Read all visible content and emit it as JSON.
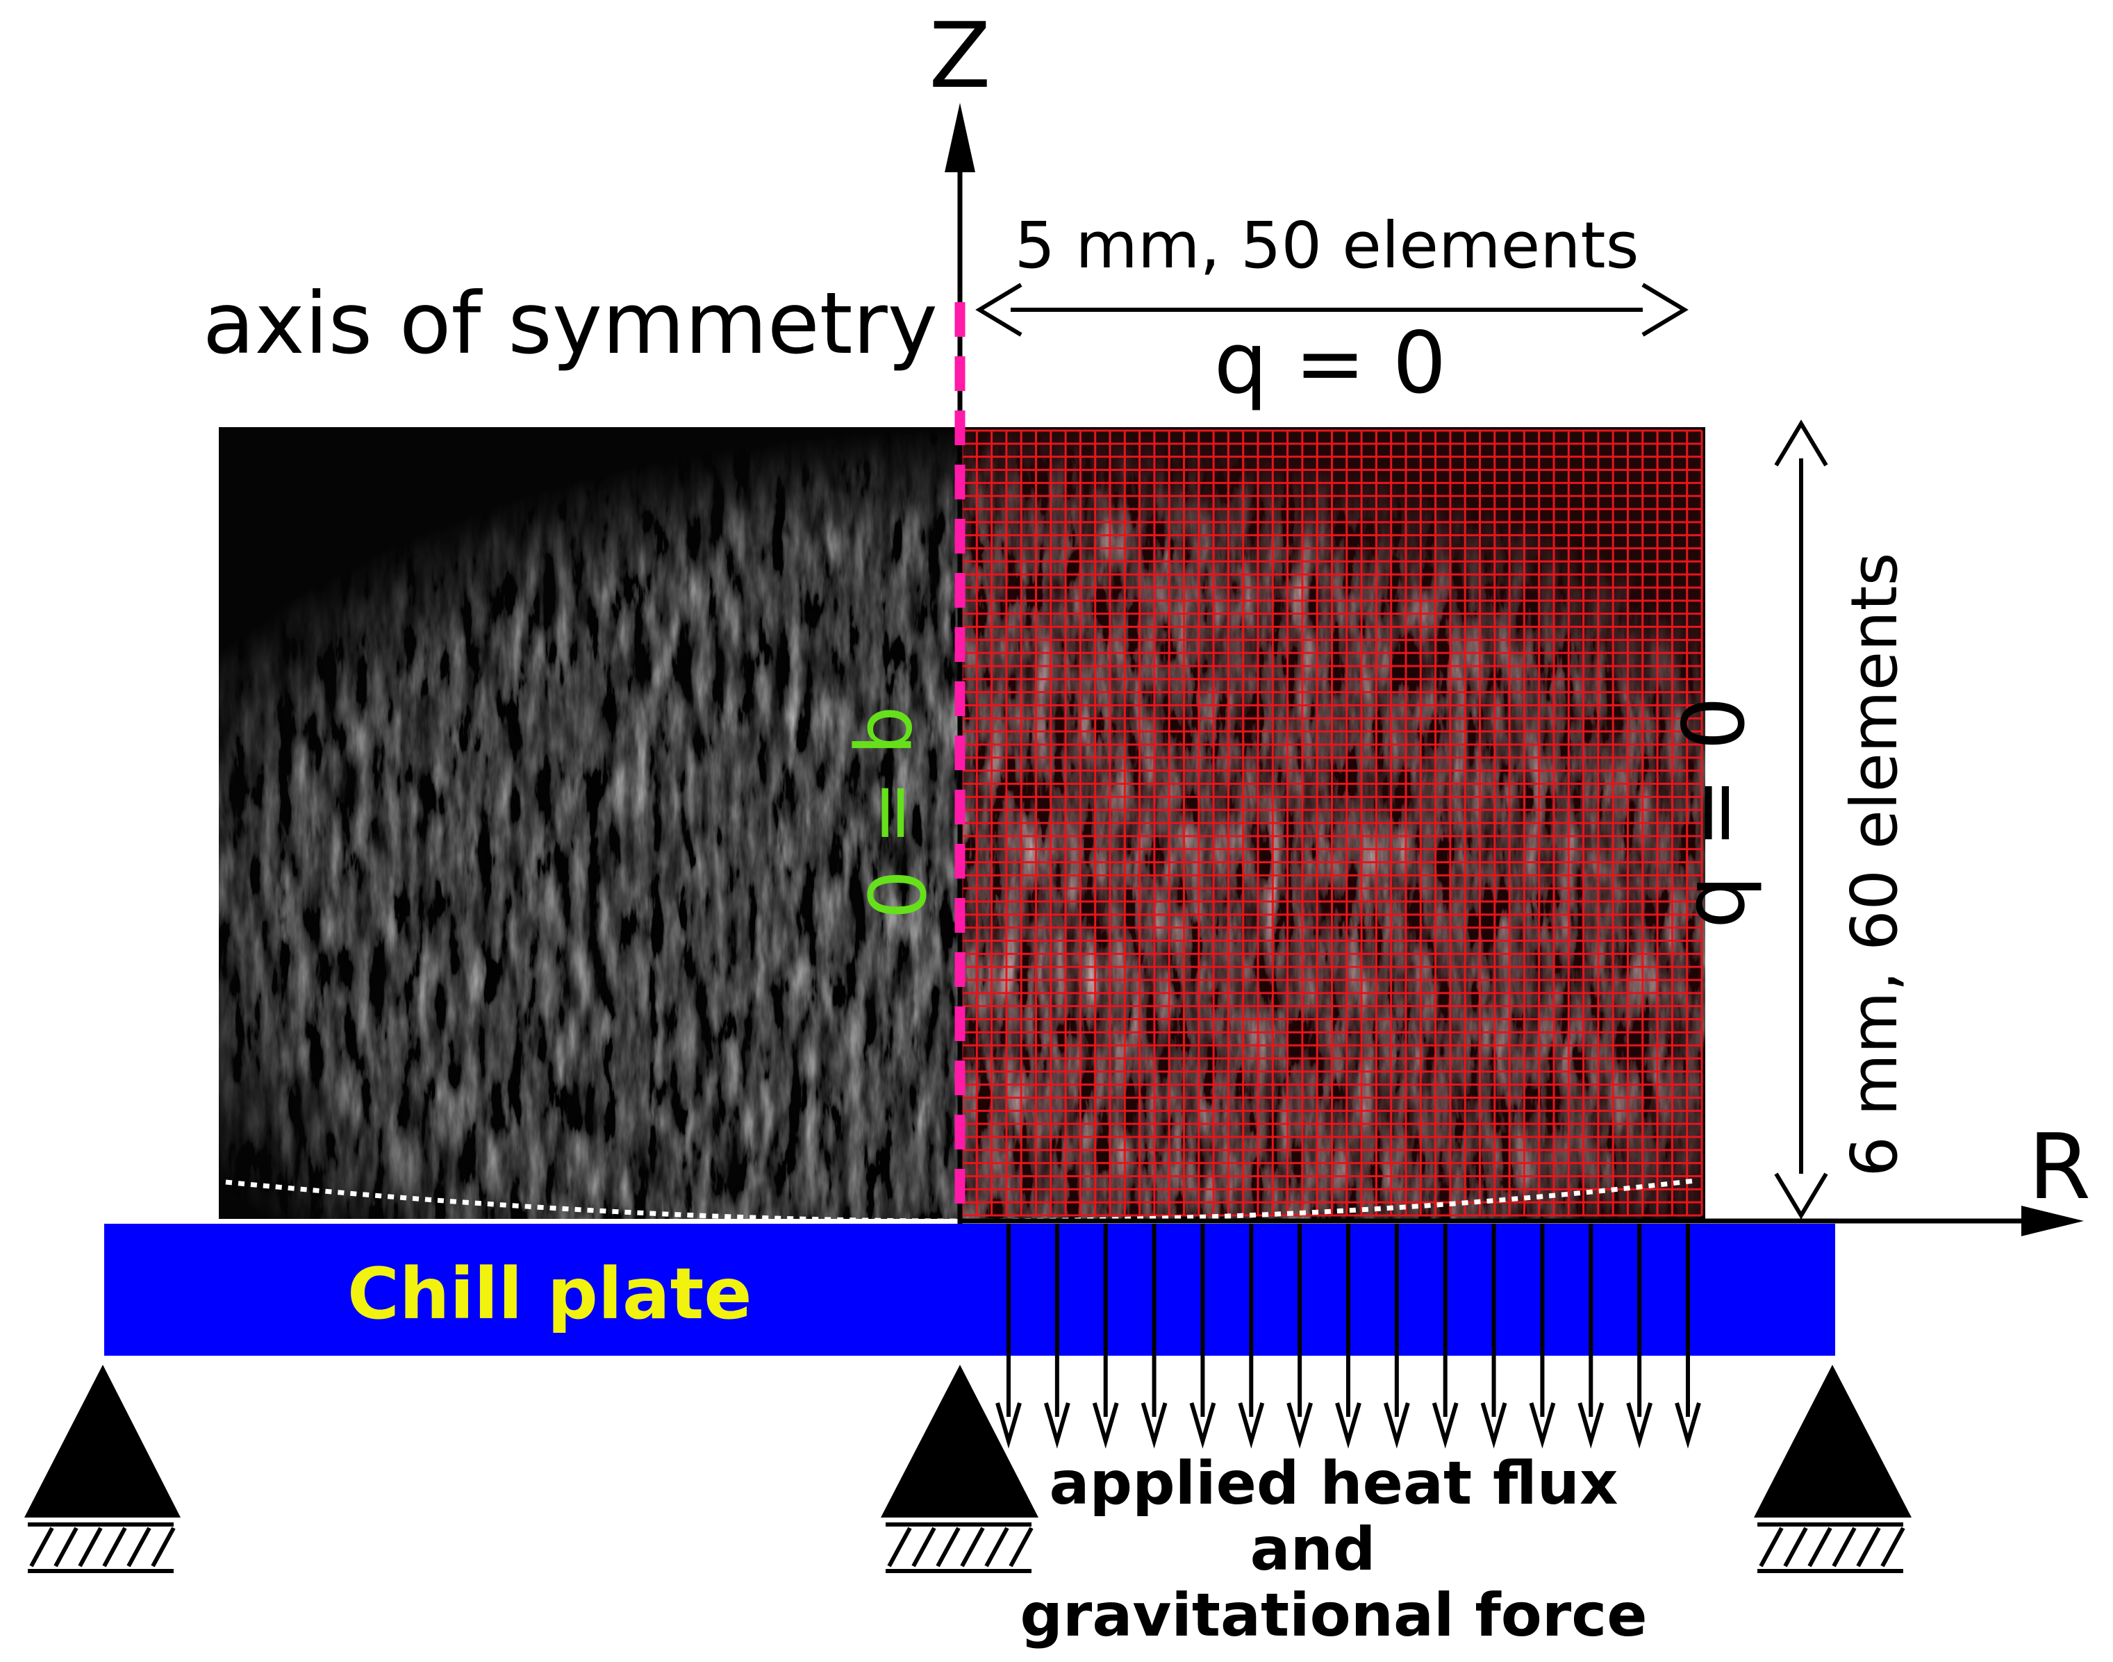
{
  "labels": {
    "axis_z": "Z",
    "axis_r": "R",
    "axis_of_symmetry": "axis of symmetry",
    "top_dimension": "5 mm, 50 elements",
    "right_dimension": "6 mm, 60 elements",
    "q_top": "q = 0",
    "q_right": "q = 0",
    "q_axis": "q = 0",
    "chill_plate": "Chill plate",
    "load_line1": "applied heat flux",
    "load_line2": "and",
    "load_line3": "gravitational force"
  },
  "mesh": {
    "radial_elements": 50,
    "axial_elements": 60
  },
  "colors": {
    "mesh": "#e8141c",
    "chill_plate": "#0000ff",
    "chill_plate_text": "#f2f20f",
    "symmetry_line": "#ff1aa8",
    "q_axis_text": "#66e01a",
    "specimen": "#050505"
  },
  "icons": {
    "support": "pinned-support-triangle-icon",
    "flux_arrow": "down-arrow-icon"
  }
}
